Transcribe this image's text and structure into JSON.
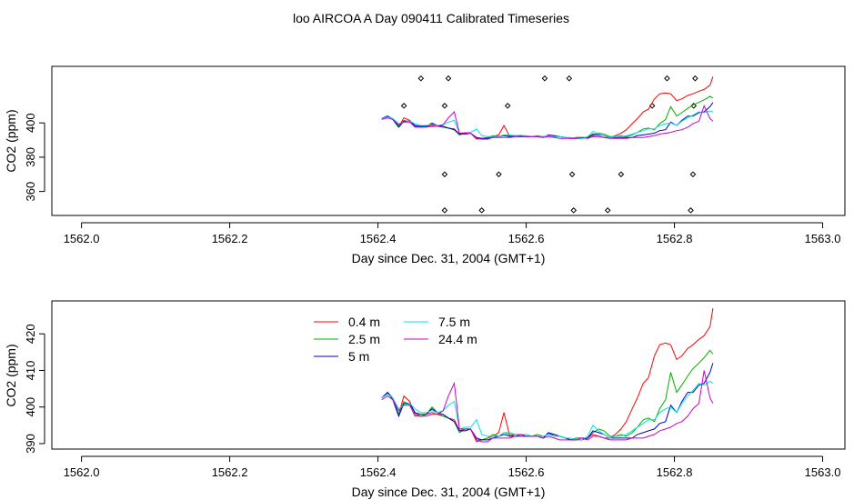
{
  "title": "loo AIRCOA A  Day 090411  Calibrated Timeseries",
  "chart_data": [
    {
      "type": "line",
      "xlabel": "Day since Dec. 31, 2004 (GMT+1)",
      "ylabel": "CO2 (ppm)",
      "xlim": [
        1561.96,
        1563.03
      ],
      "ylim": [
        346,
        433
      ],
      "xticks": [
        1562.0,
        1562.2,
        1562.4,
        1562.6,
        1562.8,
        1563.0
      ],
      "xtick_labels": [
        "1562.0",
        "1562.2",
        "1562.4",
        "1562.6",
        "1562.8",
        "1563.0"
      ],
      "yticks": [
        360,
        380,
        400
      ],
      "ytick_labels": [
        "360",
        "380",
        "400"
      ],
      "grid": false,
      "legend": "none",
      "x": [
        1562.405,
        1562.413,
        1562.42,
        1562.428,
        1562.435,
        1562.443,
        1562.45,
        1562.458,
        1562.465,
        1562.473,
        1562.48,
        1562.488,
        1562.495,
        1562.503,
        1562.51,
        1562.518,
        1562.525,
        1562.533,
        1562.54,
        1562.548,
        1562.555,
        1562.563,
        1562.57,
        1562.578,
        1562.585,
        1562.593,
        1562.6,
        1562.608,
        1562.615,
        1562.623,
        1562.63,
        1562.638,
        1562.645,
        1562.653,
        1562.66,
        1562.668,
        1562.675,
        1562.683,
        1562.69,
        1562.698,
        1562.705,
        1562.713,
        1562.72,
        1562.728,
        1562.735,
        1562.743,
        1562.75,
        1562.758,
        1562.765,
        1562.773,
        1562.78,
        1562.788,
        1562.795,
        1562.803,
        1562.81,
        1562.818,
        1562.825,
        1562.833,
        1562.84,
        1562.848,
        1562.852
      ],
      "series": [
        {
          "name": "0.4 m",
          "color": "#ff0000",
          "values": [
            402.5,
            404.0,
            402.0,
            398.0,
            403.0,
            401.5,
            398.0,
            397.5,
            398.0,
            398.5,
            398.0,
            397.5,
            397.0,
            396.5,
            393.5,
            394.0,
            394.0,
            390.5,
            391.0,
            391.5,
            392.0,
            393.0,
            398.5,
            392.0,
            392.5,
            392.5,
            392.0,
            392.0,
            392.0,
            391.5,
            393.0,
            392.0,
            392.0,
            391.5,
            391.0,
            391.5,
            391.5,
            391.5,
            392.5,
            392.0,
            391.5,
            391.5,
            392.5,
            394.0,
            396.0,
            399.5,
            402.5,
            406.5,
            408.0,
            414.0,
            417.0,
            417.5,
            417.0,
            413.0,
            414.0,
            416.0,
            417.0,
            418.5,
            419.5,
            422.0,
            427.0
          ]
        },
        {
          "name": "2.5 m",
          "color": "#00b000",
          "values": [
            402.5,
            404.0,
            402.5,
            398.0,
            401.5,
            400.5,
            398.5,
            397.5,
            398.0,
            400.0,
            398.5,
            397.5,
            397.0,
            396.0,
            393.0,
            394.0,
            394.0,
            391.0,
            391.0,
            391.5,
            392.5,
            392.0,
            393.0,
            392.5,
            392.5,
            392.5,
            392.0,
            392.0,
            392.5,
            392.0,
            392.5,
            392.5,
            392.0,
            391.5,
            391.0,
            391.5,
            391.5,
            391.5,
            393.0,
            394.0,
            393.5,
            392.0,
            392.0,
            392.5,
            392.0,
            393.0,
            394.5,
            396.5,
            397.0,
            396.0,
            399.5,
            402.0,
            409.5,
            404.0,
            406.0,
            408.5,
            410.5,
            412.0,
            413.5,
            415.5,
            414.5
          ]
        },
        {
          "name": "5 m",
          "color": "#0000cc",
          "values": [
            402.5,
            404.0,
            402.0,
            397.5,
            401.0,
            401.0,
            398.5,
            398.0,
            398.0,
            399.5,
            398.5,
            398.0,
            397.0,
            396.0,
            393.5,
            393.5,
            394.0,
            391.5,
            391.0,
            391.0,
            391.5,
            392.0,
            392.5,
            392.0,
            392.0,
            392.0,
            392.0,
            392.0,
            392.0,
            391.5,
            393.0,
            392.5,
            392.0,
            391.5,
            391.0,
            391.0,
            391.0,
            391.5,
            393.5,
            393.0,
            392.5,
            391.5,
            391.5,
            391.5,
            391.5,
            391.5,
            392.5,
            393.0,
            393.5,
            394.0,
            395.5,
            396.0,
            400.5,
            398.5,
            401.5,
            404.0,
            404.0,
            406.0,
            406.5,
            409.5,
            412.0
          ]
        },
        {
          "name": "7.5 m",
          "color": "#00e5e5",
          "values": [
            402.5,
            403.5,
            402.5,
            399.5,
            400.5,
            401.0,
            399.5,
            398.5,
            398.5,
            399.0,
            398.5,
            399.0,
            400.5,
            401.5,
            394.0,
            394.5,
            394.5,
            396.5,
            392.5,
            392.0,
            392.0,
            392.0,
            393.0,
            393.0,
            392.5,
            392.5,
            392.5,
            392.0,
            392.0,
            392.0,
            392.5,
            392.0,
            392.0,
            391.5,
            391.5,
            391.0,
            391.0,
            392.0,
            395.0,
            393.5,
            392.5,
            391.5,
            392.0,
            392.0,
            392.5,
            393.5,
            394.5,
            395.5,
            396.5,
            396.5,
            398.5,
            399.5,
            400.0,
            398.5,
            401.0,
            403.0,
            404.5,
            406.5,
            406.0,
            407.0,
            406.5
          ]
        },
        {
          "name": "24.4 m",
          "color": "#cc00cc",
          "values": [
            402.0,
            403.0,
            402.0,
            399.0,
            400.5,
            400.5,
            397.5,
            397.5,
            397.5,
            398.0,
            398.0,
            399.0,
            403.0,
            406.5,
            394.0,
            394.0,
            394.0,
            391.0,
            390.5,
            390.5,
            391.5,
            391.5,
            391.5,
            391.5,
            392.0,
            392.5,
            392.0,
            392.0,
            392.0,
            391.5,
            392.0,
            391.5,
            391.0,
            391.0,
            391.0,
            391.0,
            391.5,
            391.0,
            392.0,
            392.0,
            391.5,
            391.0,
            391.0,
            391.0,
            391.0,
            391.5,
            391.5,
            391.5,
            392.0,
            392.5,
            393.5,
            394.0,
            394.5,
            395.5,
            396.0,
            397.5,
            399.5,
            401.0,
            410.0,
            402.5,
            401.0
          ]
        }
      ],
      "flag_points": [
        {
          "x": 1562.458,
          "y": 426
        },
        {
          "x": 1562.495,
          "y": 426
        },
        {
          "x": 1562.625,
          "y": 426
        },
        {
          "x": 1562.658,
          "y": 426
        },
        {
          "x": 1562.79,
          "y": 426
        },
        {
          "x": 1562.828,
          "y": 426
        },
        {
          "x": 1562.435,
          "y": 410
        },
        {
          "x": 1562.49,
          "y": 410
        },
        {
          "x": 1562.575,
          "y": 410
        },
        {
          "x": 1562.77,
          "y": 410
        },
        {
          "x": 1562.826,
          "y": 410
        },
        {
          "x": 1562.49,
          "y": 370
        },
        {
          "x": 1562.563,
          "y": 370
        },
        {
          "x": 1562.662,
          "y": 370
        },
        {
          "x": 1562.728,
          "y": 370
        },
        {
          "x": 1562.825,
          "y": 370
        },
        {
          "x": 1562.49,
          "y": 349
        },
        {
          "x": 1562.54,
          "y": 349
        },
        {
          "x": 1562.664,
          "y": 349
        },
        {
          "x": 1562.71,
          "y": 349
        },
        {
          "x": 1562.822,
          "y": 349
        }
      ]
    },
    {
      "type": "line",
      "xlabel": "Day since Dec. 31, 2004 (GMT+1)",
      "ylabel": "CO2 (ppm)",
      "xlim": [
        1561.96,
        1563.03
      ],
      "ylim": [
        388.5,
        429
      ],
      "xticks": [
        1562.0,
        1562.2,
        1562.4,
        1562.6,
        1562.8,
        1563.0
      ],
      "xtick_labels": [
        "1562.0",
        "1562.2",
        "1562.4",
        "1562.6",
        "1562.8",
        "1563.0"
      ],
      "yticks": [
        390,
        400,
        410,
        420
      ],
      "ytick_labels": [
        "390",
        "400",
        "410",
        "420"
      ],
      "grid": false,
      "legend": "top-left",
      "legend_entries": [
        {
          "label": "0.4 m",
          "color": "#ff0000"
        },
        {
          "label": "2.5 m",
          "color": "#00b000"
        },
        {
          "label": "5 m",
          "color": "#0000cc"
        },
        {
          "label": "7.5 m",
          "color": "#00e5e5"
        },
        {
          "label": "24.4 m",
          "color": "#cc00cc"
        }
      ],
      "series_ref": 0
    }
  ]
}
